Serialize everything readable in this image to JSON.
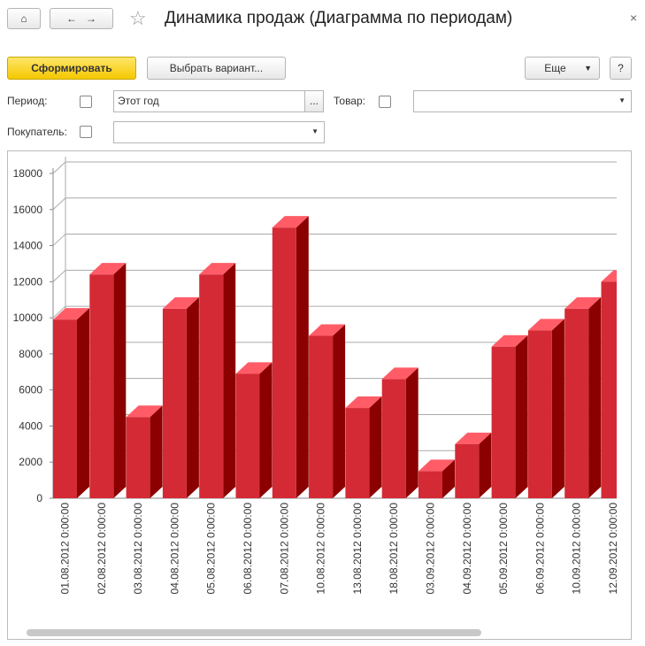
{
  "ui": {
    "title": "Динамика продаж (Диаграмма по периодам)",
    "generate": "Сформировать",
    "choose_variant": "Выбрать вариант...",
    "more": "Еще",
    "help": "?",
    "period_label": "Период:",
    "period_value": "Этот год",
    "select_button": "...",
    "product_label": "Товар:",
    "buyer_label": "Покупатель:"
  },
  "chart_data": {
    "type": "bar3d",
    "color": "#d42a35",
    "categories": [
      "01.08.2012 0:00:00",
      "02.08.2012 0:00:00",
      "03.08.2012 0:00:00",
      "04.08.2012 0:00:00",
      "05.08.2012 0:00:00",
      "06.08.2012 0:00:00",
      "07.08.2012 0:00:00",
      "10.08.2012 0:00:00",
      "13.08.2012 0:00:00",
      "18.08.2012 0:00:00",
      "03.09.2012 0:00:00",
      "04.09.2012 0:00:00",
      "05.09.2012 0:00:00",
      "06.09.2012 0:00:00",
      "10.09.2012 0:00:00",
      "12.09.2012 0:00:00"
    ],
    "values": [
      9900,
      12400,
      4500,
      10500,
      12400,
      6900,
      15000,
      9000,
      5000,
      6600,
      1500,
      3000,
      8400,
      9300,
      10500,
      12000
    ],
    "ylim": [
      0,
      18000
    ],
    "yticks": [
      0,
      2000,
      4000,
      6000,
      8000,
      10000,
      12000,
      14000,
      16000,
      18000
    ],
    "grid": true
  }
}
